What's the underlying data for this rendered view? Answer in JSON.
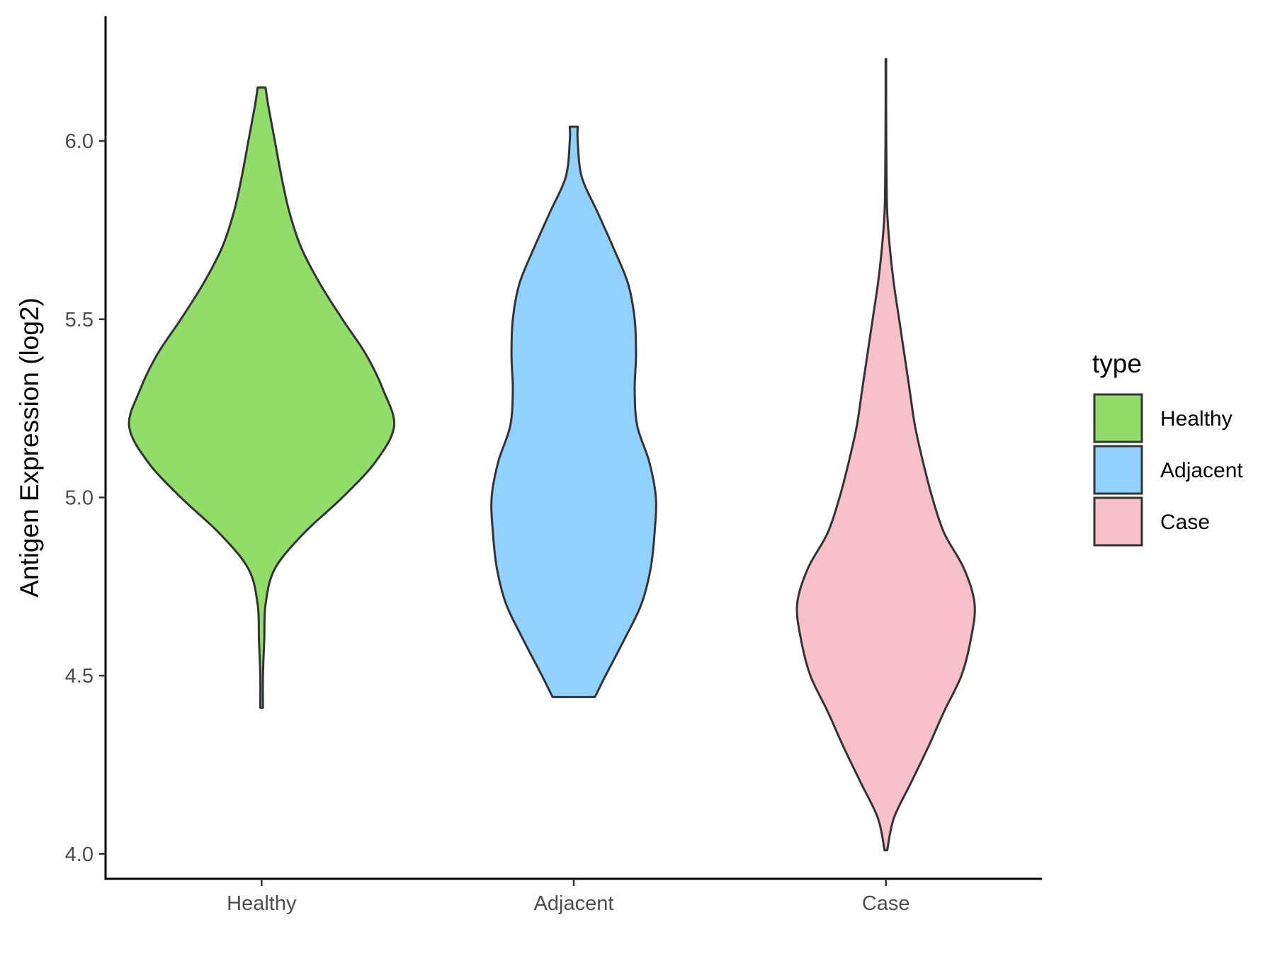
{
  "chart_data": {
    "type": "violin",
    "ylabel": "Antigen Expression (log2)",
    "xlabel": "",
    "ylim": [
      3.93,
      6.35
    ],
    "yticks": [
      "4.0",
      "4.5",
      "5.0",
      "5.5",
      "6.0"
    ],
    "grid": false,
    "legend": {
      "title": "type",
      "position": "right",
      "entries": [
        "Healthy",
        "Adjacent",
        "Case"
      ]
    },
    "categories": [
      "Healthy",
      "Adjacent",
      "Case"
    ],
    "series": [
      {
        "name": "Healthy",
        "color": "#92dc6a",
        "density": [
          [
            4.41,
            0.01
          ],
          [
            4.5,
            0.01
          ],
          [
            4.6,
            0.02
          ],
          [
            4.7,
            0.03
          ],
          [
            4.8,
            0.1
          ],
          [
            4.9,
            0.32
          ],
          [
            5.0,
            0.61
          ],
          [
            5.1,
            0.86
          ],
          [
            5.2,
            1.0
          ],
          [
            5.3,
            0.92
          ],
          [
            5.4,
            0.79
          ],
          [
            5.5,
            0.61
          ],
          [
            5.6,
            0.44
          ],
          [
            5.7,
            0.3
          ],
          [
            5.8,
            0.21
          ],
          [
            5.9,
            0.15
          ],
          [
            6.0,
            0.1
          ],
          [
            6.1,
            0.05
          ],
          [
            6.15,
            0.03
          ]
        ]
      },
      {
        "name": "Adjacent",
        "color": "#92d1fe",
        "density": [
          [
            4.44,
            0.16
          ],
          [
            4.5,
            0.24
          ],
          [
            4.6,
            0.38
          ],
          [
            4.7,
            0.51
          ],
          [
            4.8,
            0.58
          ],
          [
            4.9,
            0.61
          ],
          [
            5.0,
            0.62
          ],
          [
            5.1,
            0.57
          ],
          [
            5.2,
            0.48
          ],
          [
            5.3,
            0.46
          ],
          [
            5.4,
            0.47
          ],
          [
            5.5,
            0.46
          ],
          [
            5.6,
            0.41
          ],
          [
            5.7,
            0.3
          ],
          [
            5.8,
            0.18
          ],
          [
            5.9,
            0.06
          ],
          [
            6.0,
            0.03
          ],
          [
            6.04,
            0.03
          ]
        ]
      },
      {
        "name": "Case",
        "color": "#f8c0cb",
        "density": [
          [
            4.01,
            0.01
          ],
          [
            4.1,
            0.06
          ],
          [
            4.2,
            0.19
          ],
          [
            4.3,
            0.32
          ],
          [
            4.4,
            0.44
          ],
          [
            4.5,
            0.57
          ],
          [
            4.6,
            0.64
          ],
          [
            4.7,
            0.67
          ],
          [
            4.8,
            0.59
          ],
          [
            4.9,
            0.44
          ],
          [
            5.0,
            0.35
          ],
          [
            5.1,
            0.28
          ],
          [
            5.2,
            0.22
          ],
          [
            5.3,
            0.18
          ],
          [
            5.4,
            0.14
          ],
          [
            5.5,
            0.1
          ],
          [
            5.6,
            0.06
          ],
          [
            5.7,
            0.03
          ],
          [
            5.8,
            0.01
          ],
          [
            5.9,
            0.005
          ],
          [
            6.0,
            0.003
          ],
          [
            6.1,
            0.002
          ],
          [
            6.23,
            0.002
          ]
        ]
      }
    ]
  }
}
